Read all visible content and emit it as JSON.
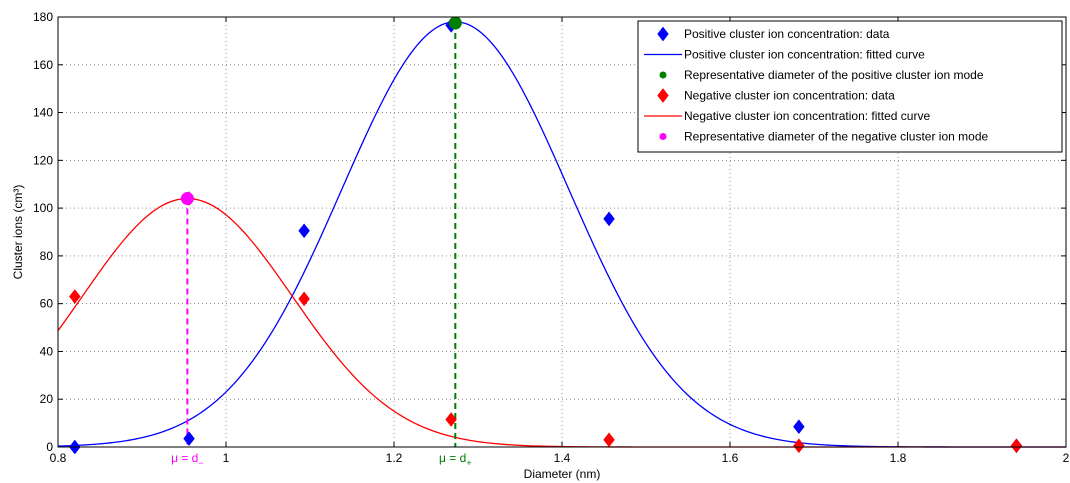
{
  "chart_data": {
    "type": "line",
    "title": "",
    "xlabel": "Diameter (nm)",
    "ylabel": "Cluster ions (cm³)",
    "xlim": [
      0.8,
      2.0
    ],
    "ylim": [
      0,
      180
    ],
    "x_ticks": [
      0.8,
      1.0,
      1.2,
      1.4,
      1.6,
      1.8,
      2.0
    ],
    "x_tick_labels": [
      "0.8",
      "1",
      "1.2",
      "1.4",
      "1.6",
      "1.8",
      "2"
    ],
    "y_ticks": [
      0,
      20,
      40,
      60,
      80,
      100,
      120,
      140,
      160,
      180
    ],
    "y_tick_labels": [
      "0",
      "20",
      "40",
      "60",
      "80",
      "100",
      "120",
      "140",
      "160",
      "180"
    ],
    "grid": true,
    "legend_position": "top-right",
    "series": [
      {
        "name": "Positive cluster ion concentration: data",
        "kind": "markers",
        "marker": "diamond",
        "color": "#0000ff",
        "x": [
          0.82,
          0.956,
          1.093,
          1.268,
          1.456,
          1.682,
          1.941
        ],
        "y": [
          0,
          3.5,
          90.5,
          176.5,
          95.5,
          8.5,
          0.5
        ]
      },
      {
        "name": "Positive cluster ion concentration: fitted curve",
        "kind": "curve",
        "color": "#0000ff",
        "model": "gaussian",
        "params": {
          "amplitude": 178,
          "mu": 1.273,
          "sigma": 0.135
        }
      },
      {
        "name": "Representative diameter of the positive cluster ion mode",
        "kind": "point",
        "color": "#008000",
        "x": [
          1.273
        ],
        "y": [
          177.5
        ]
      },
      {
        "name": "Negative cluster ion concentration: data",
        "kind": "markers",
        "marker": "diamond",
        "color": "#ff0000",
        "x": [
          0.82,
          0.956,
          1.093,
          1.268,
          1.456,
          1.682,
          1.941
        ],
        "y": [
          63,
          104,
          62,
          11.5,
          3,
          0.5,
          0.5
        ]
      },
      {
        "name": "Negative cluster ion concentration: fitted curve",
        "kind": "curve",
        "color": "#ff0000",
        "model": "gaussian",
        "params": {
          "amplitude": 104,
          "mu": 0.954,
          "sigma": 0.125
        }
      },
      {
        "name": "Representative diameter of the negative cluster ion mode",
        "kind": "point",
        "color": "#ff00ff",
        "x": [
          0.954
        ],
        "y": [
          104
        ]
      }
    ],
    "annotations": [
      {
        "series": "Representative diameter of the negative cluster ion mode",
        "mu_label": "μ = d",
        "subscript": "−",
        "color": "#ff00ff",
        "x": 0.954
      },
      {
        "series": "Representative diameter of the positive cluster ion mode",
        "mu_label": "μ = d",
        "subscript": "+",
        "color": "#008000",
        "x": 1.273
      }
    ]
  }
}
